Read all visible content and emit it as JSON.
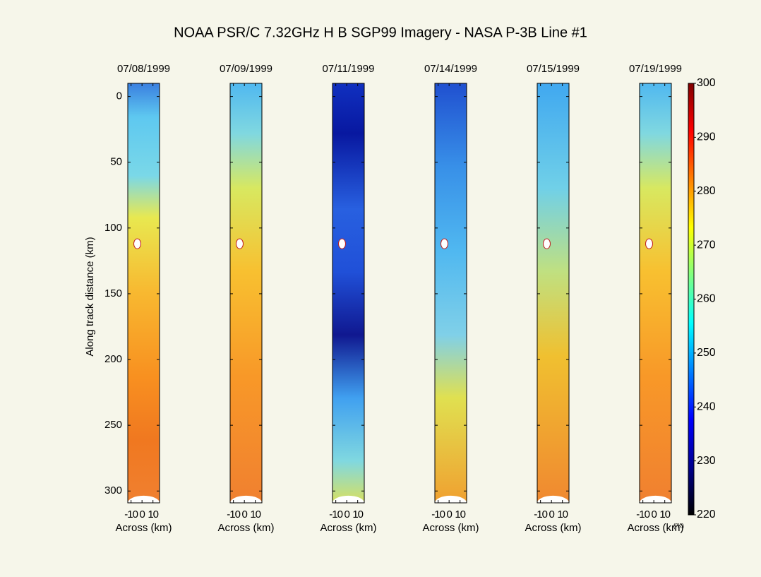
{
  "chart_data": {
    "type": "imagery",
    "title": "NOAA PSR/C 7.32GHz H B SGP99 Imagery - NASA P-3B Line #1",
    "ylabel": "Along track distance (km)",
    "xlabel": "Across (km)",
    "panels": [
      "07/08/1999",
      "07/09/1999",
      "07/11/1999",
      "07/14/1999",
      "07/15/1999",
      "07/19/1999"
    ],
    "ylim": [
      -10,
      309
    ],
    "yticks": [
      0,
      50,
      100,
      150,
      200,
      250,
      300
    ],
    "xlim": [
      -13,
      16
    ],
    "xticks": [
      -10,
      0,
      10
    ],
    "colormap": "jet",
    "colorbar": {
      "label": "(ºK)",
      "lim": [
        220,
        300
      ],
      "ticks": [
        220,
        230,
        240,
        250,
        260,
        270,
        280,
        290,
        300
      ]
    }
  }
}
